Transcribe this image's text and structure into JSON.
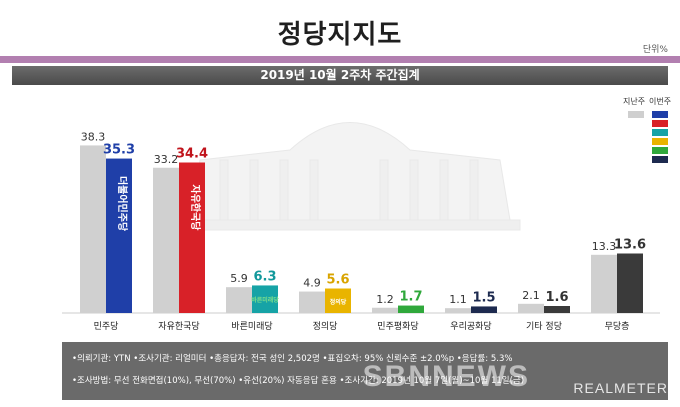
{
  "header": {
    "title": "정당지지도",
    "unit": "단위%",
    "subtitle": "2019년 10월 2주차 주간집계"
  },
  "legend": {
    "prev_label": "지난주",
    "curr_label": "이번주",
    "swatch_colors": [
      "#1f3fa8",
      "#d82128",
      "#16a3a6",
      "#e9b400",
      "#2fa83b",
      "#1d2a4f"
    ]
  },
  "chart_data": {
    "type": "bar",
    "title": "정당지지도",
    "categories": [
      "민주당",
      "자유한국당",
      "바른미래당",
      "정의당",
      "민주평화당",
      "우리공화당",
      "기타 정당",
      "무당층"
    ],
    "series": [
      {
        "name": "지난주",
        "values": [
          38.3,
          33.2,
          5.9,
          4.9,
          1.2,
          1.1,
          2.1,
          13.3
        ],
        "color": "#d0d0d0"
      },
      {
        "name": "이번주",
        "values": [
          35.3,
          34.4,
          6.3,
          5.6,
          1.7,
          1.5,
          1.6,
          13.6
        ],
        "colors": [
          "#1f3fa8",
          "#d82128",
          "#16a3a6",
          "#e9b400",
          "#2fa83b",
          "#1d2a4f",
          "#3a3a3a",
          "#3a3a3a"
        ]
      }
    ],
    "value_label_colors": [
      "#1f3fa8",
      "#c0141c",
      "#12989b",
      "#d9a400",
      "#2fa83b",
      "#1d2a4f",
      "#333333",
      "#333333"
    ],
    "bar_logos": [
      "더불어민주당",
      "자유한국당",
      "바른미래당",
      "정의당",
      "",
      "",
      "",
      ""
    ],
    "ylim": [
      0,
      40
    ]
  },
  "footer": {
    "line1": "•의뢰기관: YTN •조사기관: 리얼미터 •총응답자: 전국 성인 2,502명 •표집오차: 95% 신뢰수준 ±2.0%p •응답률: 5.3%",
    "line2": "•조사방법: 무선 전화면접(10%), 무선(70%) •유선(20%) 자동응답 혼용 •조사기간: 2019년 10월 7일(월)~10월 11일(금)",
    "brand": "REALMETER",
    "watermark": "SBNNEWS"
  }
}
